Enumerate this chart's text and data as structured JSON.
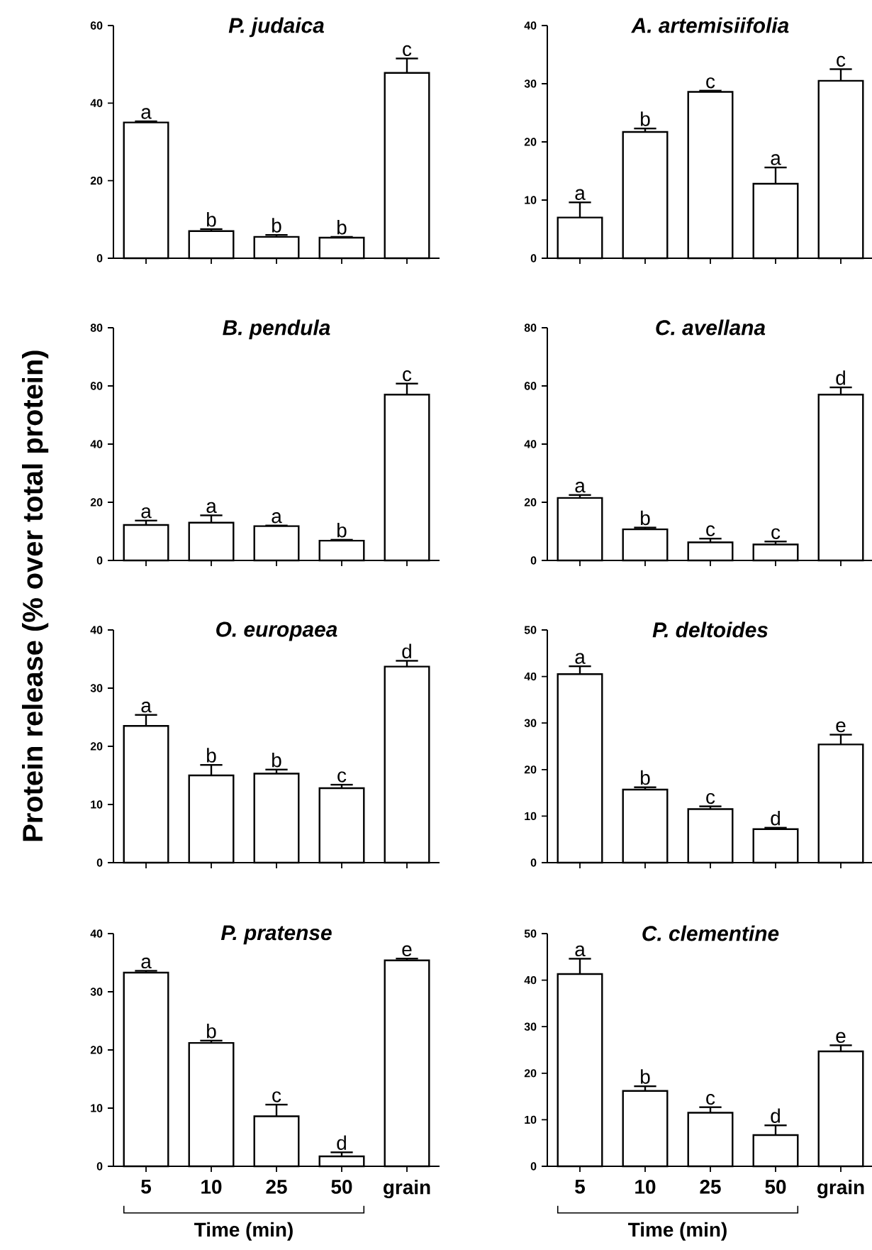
{
  "chart_data": [
    {
      "type": "bar",
      "title": "P. judaica",
      "categories": [
        null,
        null,
        null,
        null,
        null
      ],
      "values": [
        35,
        7,
        5.5,
        5.3,
        47.8
      ],
      "errors": [
        [
          35,
          35.3
        ],
        [
          7,
          7.5
        ],
        [
          5.5,
          6
        ],
        [
          5.3,
          5.5
        ],
        [
          47.8,
          51.5
        ]
      ],
      "value_labels": [
        "a",
        "b",
        "b",
        "b",
        "c"
      ],
      "color": "#ffffff",
      "ylim": [
        0,
        60
      ],
      "yticks": [
        0,
        20,
        40,
        60
      ],
      "tick_labels": "y"
    },
    {
      "type": "bar",
      "title": "A. artemisiifolia",
      "categories": [
        null,
        null,
        null,
        null,
        null
      ],
      "values": [
        7,
        21.7,
        28.6,
        12.8,
        30.5
      ],
      "errors": [
        [
          7,
          9.6
        ],
        [
          21.7,
          22.3
        ],
        [
          28.6,
          28.8
        ],
        [
          12.8,
          15.6
        ],
        [
          30.5,
          32.5
        ]
      ],
      "value_labels": [
        "a",
        "b",
        "c",
        "a",
        "c"
      ],
      "color": "#ffffff",
      "ylim": [
        0,
        40
      ],
      "yticks": [
        0,
        10,
        20,
        30,
        40
      ],
      "tick_labels": "y"
    },
    {
      "type": "bar",
      "title": "B. pendula",
      "categories": [
        null,
        null,
        null,
        null,
        null
      ],
      "values": [
        12.2,
        13,
        11.8,
        6.8,
        57
      ],
      "errors": [
        [
          12.2,
          13.7
        ],
        [
          13,
          15.5
        ],
        [
          11.8,
          12
        ],
        [
          6.8,
          7.1
        ],
        [
          57,
          60.8
        ]
      ],
      "value_labels": [
        "a",
        "a",
        "a",
        "b",
        "c"
      ],
      "color": "#ffffff",
      "ylim": [
        0,
        80
      ],
      "yticks": [
        0,
        20,
        40,
        60,
        80
      ],
      "tick_labels": "y"
    },
    {
      "type": "bar",
      "title": "C. avellana",
      "categories": [
        null,
        null,
        null,
        null,
        null
      ],
      "values": [
        21.5,
        10.7,
        6.2,
        5.5,
        57
      ],
      "errors": [
        [
          21.5,
          22.5
        ],
        [
          10.7,
          11.3
        ],
        [
          6.2,
          7.5
        ],
        [
          5.5,
          6.5
        ],
        [
          57,
          59.5
        ]
      ],
      "value_labels": [
        "a",
        "b",
        "c",
        "c",
        "d"
      ],
      "color": "#ffffff",
      "ylim": [
        0,
        80
      ],
      "yticks": [
        0,
        20,
        40,
        60,
        80
      ],
      "tick_labels": "y"
    },
    {
      "type": "bar",
      "title": "O. europaea",
      "ylabel": "Protein release (% over total protein)",
      "categories": [
        null,
        null,
        null,
        null,
        null
      ],
      "values": [
        23.5,
        15,
        15.3,
        12.8,
        33.7
      ],
      "errors": [
        [
          23.5,
          25.4
        ],
        [
          15,
          16.8
        ],
        [
          15.3,
          16
        ],
        [
          12.8,
          13.4
        ],
        [
          33.7,
          34.7
        ]
      ],
      "value_labels": [
        "a",
        "b",
        "b",
        "c",
        "d"
      ],
      "color": "#ffffff",
      "ylim": [
        0,
        40
      ],
      "yticks": [
        0,
        10,
        20,
        30,
        40
      ],
      "tick_labels": "y"
    },
    {
      "type": "bar",
      "title": "P. deltoides",
      "categories": [
        null,
        null,
        null,
        null,
        null
      ],
      "values": [
        40.5,
        15.7,
        11.5,
        7.2,
        25.4
      ],
      "errors": [
        [
          40.5,
          42.2
        ],
        [
          15.7,
          16.2
        ],
        [
          11.5,
          12.1
        ],
        [
          7.2,
          7.5
        ],
        [
          25.4,
          27.5
        ]
      ],
      "value_labels": [
        "a",
        "b",
        "c",
        "d",
        "e"
      ],
      "color": "#ffffff",
      "ylim": [
        0,
        50
      ],
      "yticks": [
        0,
        10,
        20,
        30,
        40,
        50
      ],
      "tick_labels": "y"
    },
    {
      "type": "bar",
      "title": "P. pratense",
      "xlabel": "Time (min)",
      "categories": [
        "5",
        "10",
        "25",
        "50",
        "grain"
      ],
      "values": [
        33.3,
        21.2,
        8.6,
        1.7,
        35.4
      ],
      "errors": [
        [
          33.3,
          33.6
        ],
        [
          21.2,
          21.6
        ],
        [
          8.6,
          10.6
        ],
        [
          1.7,
          2.4
        ],
        [
          35.4,
          35.7
        ]
      ],
      "value_labels": [
        "a",
        "b",
        "c",
        "d",
        "e"
      ],
      "color": "#ffffff",
      "ylim": [
        0,
        40
      ],
      "yticks": [
        0,
        10,
        20,
        30,
        40
      ]
    },
    {
      "type": "bar",
      "title": "C. clementine",
      "xlabel": "Time (min)",
      "categories": [
        "5",
        "10",
        "25",
        "50",
        "grain"
      ],
      "values": [
        41.3,
        16.2,
        11.5,
        6.7,
        24.7
      ],
      "errors": [
        [
          41.3,
          44.6
        ],
        [
          16.2,
          17.2
        ],
        [
          11.5,
          12.7
        ],
        [
          6.7,
          8.8
        ],
        [
          24.7,
          26
        ]
      ],
      "value_labels": [
        "a",
        "b",
        "c",
        "d",
        "e"
      ],
      "color": "#ffffff",
      "ylim": [
        0,
        50
      ],
      "yticks": [
        0,
        10,
        20,
        30,
        40,
        50
      ]
    }
  ]
}
